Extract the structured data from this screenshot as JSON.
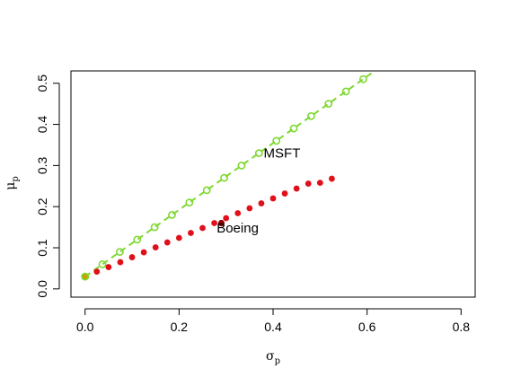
{
  "chart_data": {
    "type": "scatter",
    "title": "",
    "xlabel": "σp",
    "ylabel": "μp",
    "xlabel_main": "σ",
    "xlabel_sub": "p",
    "ylabel_main": "μ",
    "ylabel_sub": "p",
    "xlim": [
      -0.03,
      0.83
    ],
    "ylim": [
      -0.02,
      0.53
    ],
    "x_ticks": [
      0.0,
      0.2,
      0.4,
      0.6,
      0.8
    ],
    "x_tick_labels": [
      "0.0",
      "0.2",
      "0.4",
      "0.6",
      "0.8"
    ],
    "y_ticks": [
      0.0,
      0.1,
      0.2,
      0.3,
      0.4,
      0.5
    ],
    "y_tick_labels": [
      "0.0",
      "0.1",
      "0.2",
      "0.3",
      "0.4",
      "0.5"
    ],
    "grid": false,
    "legend": "none",
    "series": [
      {
        "marker": "open-circle",
        "color": "#7fd832",
        "x": [
          0.0,
          0.037,
          0.074,
          0.111,
          0.148,
          0.185,
          0.222,
          0.259,
          0.296,
          0.333,
          0.37,
          0.407,
          0.444,
          0.481,
          0.518,
          0.555,
          0.592
        ],
        "y": [
          0.03,
          0.06,
          0.09,
          0.12,
          0.15,
          0.18,
          0.21,
          0.24,
          0.27,
          0.3,
          0.33,
          0.36,
          0.39,
          0.42,
          0.45,
          0.48,
          0.51
        ]
      },
      {
        "marker": "filled-circle",
        "color": "#e0101a",
        "x": [
          0.0,
          0.025,
          0.05,
          0.075,
          0.1,
          0.125,
          0.15,
          0.175,
          0.2,
          0.225,
          0.25,
          0.275,
          0.3,
          0.325,
          0.35,
          0.375,
          0.4,
          0.425,
          0.45,
          0.475,
          0.5,
          0.525
        ],
        "y": [
          0.03,
          0.042,
          0.053,
          0.065,
          0.077,
          0.089,
          0.101,
          0.113,
          0.124,
          0.136,
          0.148,
          0.16,
          0.172,
          0.184,
          0.196,
          0.208,
          0.22,
          0.232,
          0.244,
          0.256,
          0.258,
          0.268
        ]
      }
    ],
    "tangent_line": {
      "style": "dashed",
      "color": "#7fd832",
      "x": [
        0.0,
        0.62
      ],
      "y": [
        0.03,
        0.533
      ]
    },
    "special_points": [
      {
        "x": 0.0,
        "y": 0.03,
        "color": "#c8a000",
        "outline": "#7fd832"
      },
      {
        "x": 0.29,
        "y": 0.16,
        "color": "#8b0000"
      }
    ],
    "annotations": [
      {
        "text": "MSFT",
        "x": 0.38,
        "y": 0.33
      },
      {
        "text": "Boeing",
        "x": 0.28,
        "y": 0.148
      }
    ]
  }
}
